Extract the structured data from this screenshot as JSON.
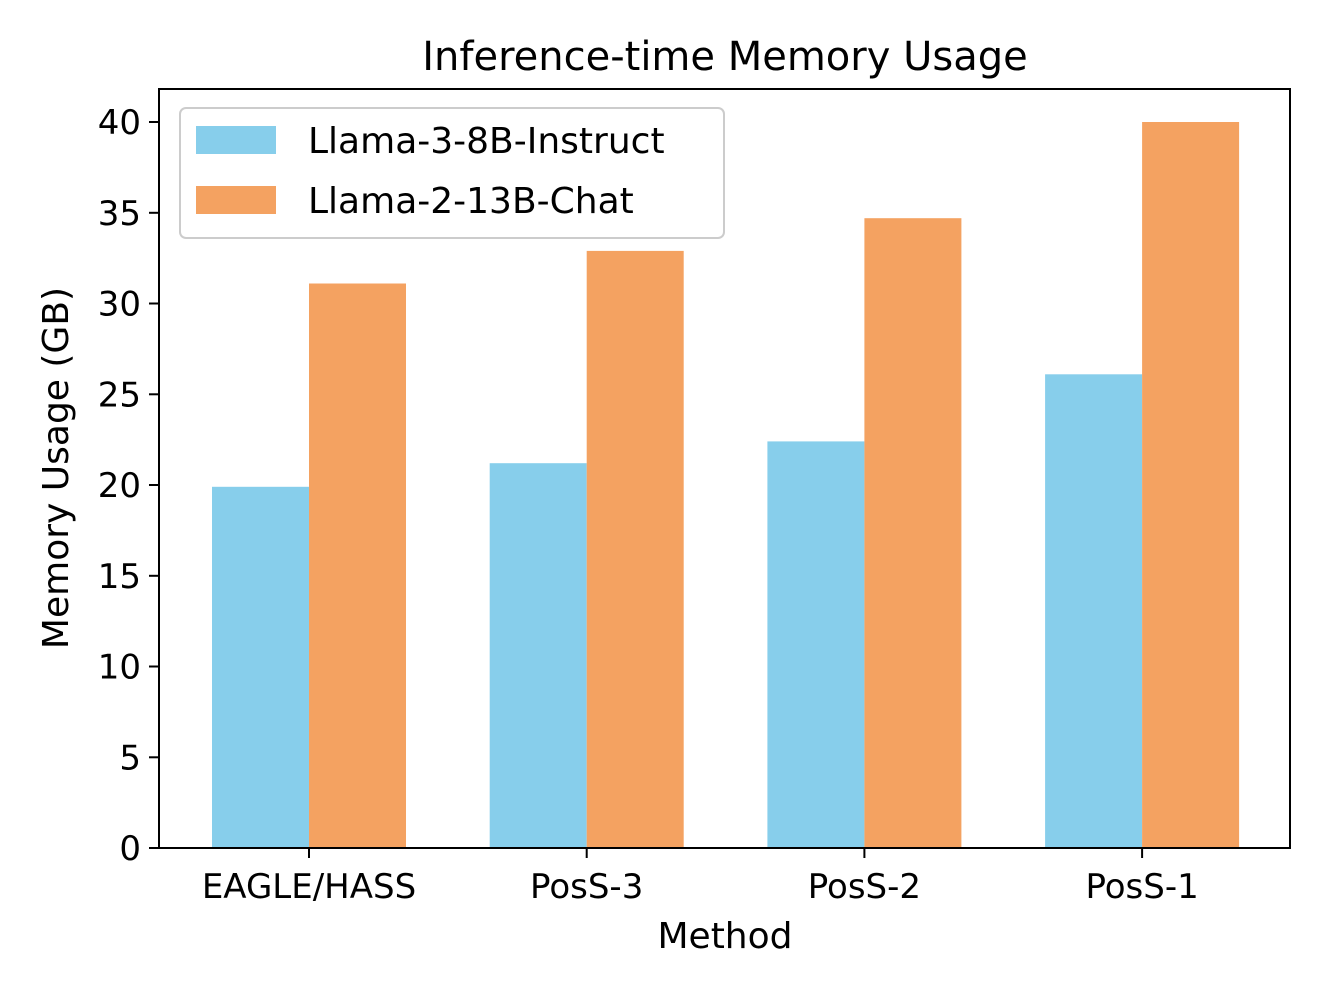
{
  "chart_data": {
    "type": "bar",
    "title": "Inference-time Memory Usage",
    "xlabel": "Method",
    "ylabel": "Memory Usage (GB)",
    "categories": [
      "EAGLE/HASS",
      "PosS-3",
      "PosS-2",
      "PosS-1"
    ],
    "series": [
      {
        "name": "Llama-3-8B-Instruct",
        "color": "#87ceeb",
        "values": [
          19.9,
          21.2,
          22.4,
          26.1
        ]
      },
      {
        "name": "Llama-2-13B-Chat",
        "color": "#f4a261",
        "values": [
          31.1,
          32.9,
          34.7,
          40.0
        ]
      }
    ],
    "ylim": [
      0,
      42
    ],
    "yticks": [
      0,
      5,
      10,
      15,
      20,
      25,
      30,
      35,
      40
    ],
    "grid": false,
    "legend_position": "upper-left"
  }
}
